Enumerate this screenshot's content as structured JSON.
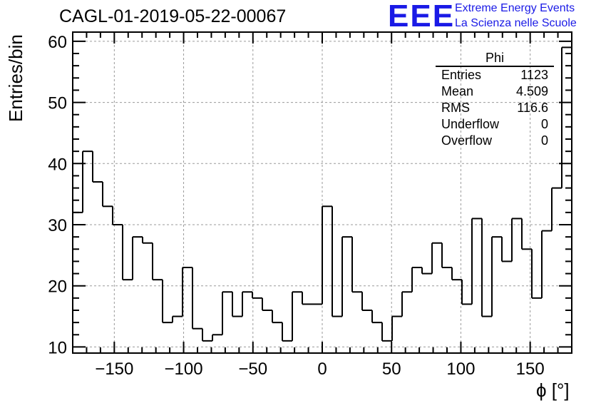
{
  "chart_data": {
    "type": "bar",
    "title": "CAGL-01-2019-05-22-00067",
    "xlabel": "ϕ [°]",
    "ylabel": "Entries/bin",
    "xlim": [
      -180,
      180
    ],
    "ylim": [
      9,
      61.5
    ],
    "bin_width": 7.2,
    "bin_start": -180,
    "values": [
      32,
      42,
      37,
      33,
      30,
      21,
      28,
      27,
      21,
      14,
      15,
      23,
      13,
      11,
      12,
      19,
      15,
      19,
      18,
      16,
      14,
      11,
      19,
      17,
      17,
      33,
      15,
      28,
      19,
      16,
      14,
      11,
      15,
      19,
      23,
      22,
      27,
      23,
      21,
      17,
      31,
      15,
      28,
      24,
      31,
      26,
      18,
      29,
      36,
      59
    ],
    "x_ticks": [
      "−150",
      "−100",
      "−50",
      "0",
      "50",
      "100",
      "150"
    ],
    "x_tick_values": [
      -150,
      -100,
      -50,
      0,
      50,
      100,
      150
    ],
    "y_ticks": [
      "10",
      "20",
      "30",
      "40",
      "50",
      "60"
    ],
    "y_tick_values": [
      10,
      20,
      30,
      40,
      50,
      60
    ],
    "grid": true,
    "legend": "none"
  },
  "stats": {
    "title": "Phi",
    "rows": [
      {
        "label": "Entries",
        "value": "1123"
      },
      {
        "label": "Mean",
        "value": "4.509"
      },
      {
        "label": "RMS",
        "value": "116.6"
      },
      {
        "label": "Underflow",
        "value": "0"
      },
      {
        "label": "Overflow",
        "value": "0"
      }
    ]
  },
  "logo": {
    "mark": "EEE",
    "line1": "Extreme Energy Events",
    "line2": "La Scienza nelle Scuole",
    "color": "#1a1ae6"
  }
}
